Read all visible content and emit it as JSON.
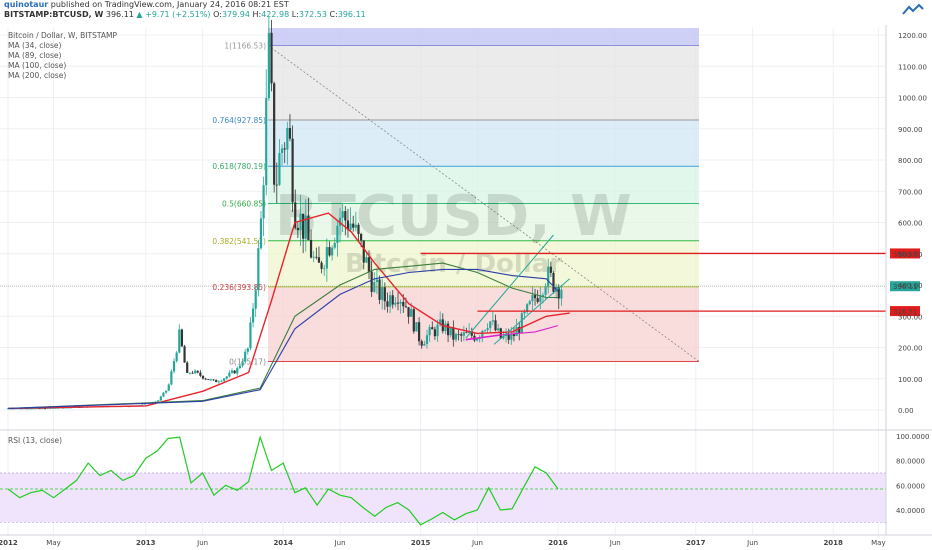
{
  "header": {
    "author": "quinotaur",
    "published": "published on TradingView.com, January 24, 2016 08:21 EST",
    "symbol": "BITSTAMP:BTCUSD, W",
    "last": "396.11",
    "change": "▲ +9.71 (+2.51%)",
    "o_label": "O:",
    "o_value": "379.94",
    "h_label": "H:",
    "h_value": "422.98",
    "l_label": "L:",
    "l_value": "372.53",
    "c_label": "C:",
    "c_value": "396.11"
  },
  "legend": {
    "title": "Bitcoin / Dollar, W, BITSTAMP",
    "ma34": "MA (34, close)",
    "ma89": "MA (89, close)",
    "ma100": "MA (100, close)",
    "ma200": "MA (200, close)"
  },
  "watermark": {
    "symbol": "BTCUSD, W",
    "name": "Bitcoin / Dollar"
  },
  "rsi_label": "RSI (13, close)",
  "colors": {
    "up": "#26a69a",
    "down": "#333333",
    "ma34": "#e8232a",
    "ma89": "#3a7d3a",
    "ma100": "#2c3ea8",
    "ma200": "#e020d0",
    "rsi": "#22cc22",
    "hline": "#e21b1b",
    "price_tag": "#26a69a"
  },
  "chart_data": [
    {
      "type": "candlestick",
      "title": "Bitcoin / Dollar, W, BITSTAMP",
      "x_ticks": [
        "2012",
        "May",
        "2013",
        "Jun",
        "2014",
        "Jun",
        "2015",
        "Jun",
        "2016",
        "Jun",
        "2017",
        "Jun",
        "2018",
        "May"
      ],
      "y_ticks": [
        0,
        100,
        200,
        300,
        400,
        500,
        600,
        700,
        800,
        900,
        1000,
        1100,
        1200
      ],
      "y_tick_labels": [
        "0.00",
        "100.00",
        "200.00",
        "300.00",
        "400.00",
        "500.00",
        "600.00",
        "700.00",
        "800.00",
        "900.00",
        "1000.00",
        "1100.00",
        "1200.00"
      ],
      "ylim": [
        -20,
        1225
      ],
      "close_path": [
        [
          "2012-01",
          5
        ],
        [
          "2012-04",
          5
        ],
        [
          "2012-08",
          10
        ],
        [
          "2012-12",
          13
        ],
        [
          "2013-02",
          28
        ],
        [
          "2013-03",
          70
        ],
        [
          "2013-04",
          240
        ],
        [
          "2013-04-20",
          110
        ],
        [
          "2013-05",
          125
        ],
        [
          "2013-07",
          90
        ],
        [
          "2013-08",
          105
        ],
        [
          "2013-09",
          130
        ],
        [
          "2013-10",
          200
        ],
        [
          "2013-11",
          550
        ],
        [
          "2013-11-25",
          1150
        ],
        [
          "2013-12-10",
          700
        ],
        [
          "2013-12-25",
          830
        ],
        [
          "2014-01-15",
          900
        ],
        [
          "2014-02",
          650
        ],
        [
          "2014-03",
          570
        ],
        [
          "2014-04",
          440
        ],
        [
          "2014-05",
          530
        ],
        [
          "2014-06",
          620
        ],
        [
          "2014-07",
          600
        ],
        [
          "2014-08",
          500
        ],
        [
          "2014-09",
          390
        ],
        [
          "2014-10",
          350
        ],
        [
          "2014-11",
          380
        ],
        [
          "2014-12",
          320
        ],
        [
          "2015-01",
          220
        ],
        [
          "2015-02",
          250
        ],
        [
          "2015-03",
          270
        ],
        [
          "2015-04",
          230
        ],
        [
          "2015-05",
          238
        ],
        [
          "2015-06",
          240
        ],
        [
          "2015-07",
          290
        ],
        [
          "2015-08",
          230
        ],
        [
          "2015-09",
          232
        ],
        [
          "2015-10",
          290
        ],
        [
          "2015-11",
          360
        ],
        [
          "2015-12",
          430
        ],
        [
          "2016-01",
          396.11
        ]
      ],
      "moving_averages": [
        {
          "name": "MA (34, close)",
          "values": [
            [
              "2012-01",
              5
            ],
            [
              "2013-01",
              13
            ],
            [
              "2013-06",
              60
            ],
            [
              "2013-10",
              120
            ],
            [
              "2013-12",
              350
            ],
            [
              "2014-02",
              600
            ],
            [
              "2014-05",
              630
            ],
            [
              "2014-07",
              570
            ],
            [
              "2014-09",
              470
            ],
            [
              "2014-12",
              340
            ],
            [
              "2015-03",
              270
            ],
            [
              "2015-06",
              245
            ],
            [
              "2015-09",
              250
            ],
            [
              "2015-12",
              300
            ],
            [
              "2016-02",
              310
            ]
          ]
        },
        {
          "name": "MA (89, close)",
          "values": [
            [
              "2012-01",
              5
            ],
            [
              "2013-06",
              30
            ],
            [
              "2013-11",
              70
            ],
            [
              "2014-02",
              300
            ],
            [
              "2014-06",
              400
            ],
            [
              "2014-09",
              450
            ],
            [
              "2014-12",
              460
            ],
            [
              "2015-03",
              470
            ],
            [
              "2015-06",
              440
            ],
            [
              "2015-09",
              390
            ],
            [
              "2015-12",
              360
            ],
            [
              "2016-01",
              360
            ]
          ]
        },
        {
          "name": "MA (100, close)",
          "values": [
            [
              "2012-01",
              5
            ],
            [
              "2013-06",
              28
            ],
            [
              "2013-11",
              65
            ],
            [
              "2014-02",
              260
            ],
            [
              "2014-06",
              370
            ],
            [
              "2014-09",
              420
            ],
            [
              "2014-12",
              440
            ],
            [
              "2015-03",
              450
            ],
            [
              "2015-06",
              450
            ],
            [
              "2015-09",
              430
            ],
            [
              "2015-12",
              420
            ],
            [
              "2016-01",
              380
            ]
          ]
        },
        {
          "name": "MA (200, close)",
          "values": [
            [
              "2015-05",
              225
            ],
            [
              "2015-08",
              240
            ],
            [
              "2015-11",
              250
            ],
            [
              "2016-01",
              270
            ]
          ]
        }
      ],
      "fibonacci": [
        {
          "level": "1",
          "price": 1166.53
        },
        {
          "level": "0.764",
          "price": 927.85
        },
        {
          "level": "0.618",
          "price": 780.19
        },
        {
          "level": "0.5",
          "price": 660.85
        },
        {
          "level": "0.382",
          "price": 541.51
        },
        {
          "level": "0.236",
          "price": 393.85
        },
        {
          "level": "0",
          "price": 155.17
        }
      ],
      "horizontal_lines": [
        500.97,
        316.51
      ],
      "price_tags": [
        "500.97",
        "396.11",
        "316.51"
      ],
      "last_price": 396.11
    },
    {
      "type": "line",
      "title": "RSI (13, close)",
      "y_ticks": [
        40,
        60,
        80,
        100
      ],
      "y_tick_labels": [
        "40.0000",
        "60.0000",
        "80.0000",
        "100.0000"
      ],
      "band": [
        30,
        70
      ],
      "midline": 57,
      "ylim": [
        23,
        103
      ],
      "values": [
        [
          "2012-01",
          57
        ],
        [
          "2012-02",
          50
        ],
        [
          "2012-03",
          54
        ],
        [
          "2012-04",
          56
        ],
        [
          "2012-05",
          50
        ],
        [
          "2012-06",
          57
        ],
        [
          "2012-07",
          64
        ],
        [
          "2012-08",
          78
        ],
        [
          "2012-09",
          68
        ],
        [
          "2012-10",
          72
        ],
        [
          "2012-11",
          64
        ],
        [
          "2012-12",
          68
        ],
        [
          "2013-01",
          82
        ],
        [
          "2013-02",
          88
        ],
        [
          "2013-03",
          98
        ],
        [
          "2013-04",
          99
        ],
        [
          "2013-05",
          62
        ],
        [
          "2013-06",
          70
        ],
        [
          "2013-07",
          52
        ],
        [
          "2013-08",
          60
        ],
        [
          "2013-09",
          56
        ],
        [
          "2013-10",
          63
        ],
        [
          "2013-11",
          99
        ],
        [
          "2013-12",
          72
        ],
        [
          "2014-01",
          78
        ],
        [
          "2014-02",
          54
        ],
        [
          "2014-03",
          58
        ],
        [
          "2014-04",
          44
        ],
        [
          "2014-05",
          57
        ],
        [
          "2014-06",
          52
        ],
        [
          "2014-07",
          50
        ],
        [
          "2014-08",
          42
        ],
        [
          "2014-09",
          35
        ],
        [
          "2014-10",
          42
        ],
        [
          "2014-11",
          46
        ],
        [
          "2014-12",
          40
        ],
        [
          "2015-01",
          28
        ],
        [
          "2015-02",
          33
        ],
        [
          "2015-03",
          38
        ],
        [
          "2015-04",
          32
        ],
        [
          "2015-05",
          37
        ],
        [
          "2015-06",
          40
        ],
        [
          "2015-07",
          58
        ],
        [
          "2015-08",
          40
        ],
        [
          "2015-09",
          41
        ],
        [
          "2015-10",
          58
        ],
        [
          "2015-11",
          75
        ],
        [
          "2015-12",
          70
        ],
        [
          "2016-01",
          57
        ]
      ]
    }
  ]
}
